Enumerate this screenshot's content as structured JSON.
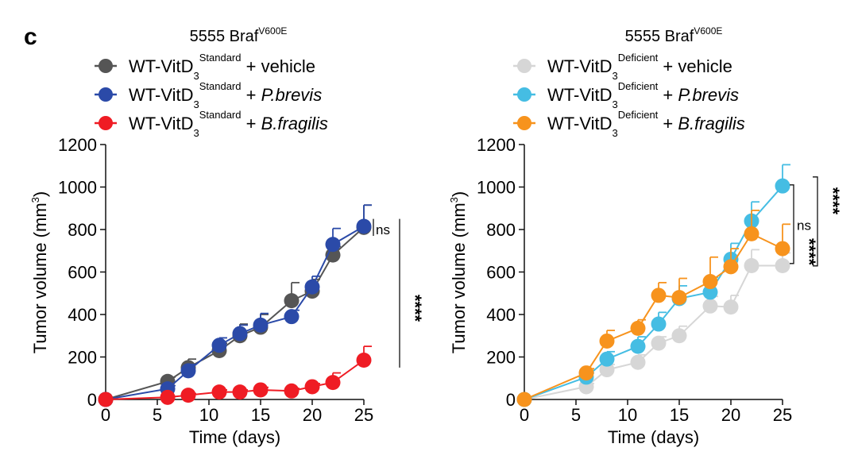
{
  "panel_label": "c",
  "chart_data": [
    {
      "type": "line",
      "title": {
        "main": "5555 Braf",
        "sup": "V600E"
      },
      "xlabel": "Time (days)",
      "ylabel": {
        "main": "Tumor volume (mm",
        "sup": "3",
        "end": ")"
      },
      "xlim": [
        0,
        25
      ],
      "ylim": [
        0,
        1200
      ],
      "xticks": [
        "0",
        "5",
        "10",
        "15",
        "20",
        "25"
      ],
      "yticks": [
        "0",
        "200",
        "400",
        "600",
        "800",
        "1000",
        "1200"
      ],
      "series": [
        {
          "legend": {
            "a": "WT-VitD",
            "sub": "3",
            "sup": "Standard",
            "b": " + ",
            "c": "vehicle",
            "italic": false
          },
          "color": "#555555",
          "x": [
            0,
            6,
            8,
            11,
            13,
            15,
            18,
            20,
            22,
            25
          ],
          "y": [
            0,
            85,
            150,
            230,
            300,
            340,
            465,
            510,
            680,
            810
          ],
          "err": [
            0,
            20,
            40,
            35,
            55,
            60,
            85,
            55,
            40,
            105
          ]
        },
        {
          "legend": {
            "a": "WT-VitD",
            "sub": "3",
            "sup": "Standard",
            "b": " + ",
            "c": "P.brevis",
            "italic": true
          },
          "color": "#2b4aa8",
          "x": [
            0,
            6,
            8,
            11,
            13,
            15,
            18,
            20,
            22,
            25
          ],
          "y": [
            0,
            50,
            135,
            255,
            310,
            350,
            390,
            530,
            730,
            815
          ],
          "err": [
            0,
            15,
            30,
            35,
            40,
            55,
            30,
            50,
            75,
            100
          ]
        },
        {
          "legend": {
            "a": "WT-VitD",
            "sub": "3",
            "sup": "Standard",
            "b": " + ",
            "c": "B.fragilis",
            "italic": true
          },
          "color": "#ef1c24",
          "x": [
            0,
            6,
            8,
            11,
            13,
            15,
            18,
            20,
            22,
            25
          ],
          "y": [
            0,
            10,
            20,
            35,
            35,
            45,
            40,
            60,
            80,
            185
          ],
          "err": [
            0,
            5,
            8,
            10,
            10,
            12,
            12,
            15,
            45,
            65
          ]
        }
      ],
      "annotations": [
        {
          "text": "ns",
          "kind": "label",
          "x": 25.2,
          "y1": 770,
          "y2": 850,
          "style": "bar-left"
        },
        {
          "text": "****",
          "kind": "stars",
          "xpx_offset": 45,
          "y1": 0,
          "y2": 820
        }
      ]
    },
    {
      "type": "line",
      "title": {
        "main": "5555 Braf",
        "sup": "V600E"
      },
      "xlabel": "Time (days)",
      "ylabel": {
        "main": "Tumor volume (mm",
        "sup": "3",
        "end": ")"
      },
      "xlim": [
        0,
        25
      ],
      "ylim": [
        0,
        1200
      ],
      "xticks": [
        "0",
        "5",
        "10",
        "15",
        "20",
        "25"
      ],
      "yticks": [
        "0",
        "200",
        "400",
        "600",
        "800",
        "1000",
        "1200"
      ],
      "series": [
        {
          "legend": {
            "a": "WT-VitD",
            "sub": "3",
            "sup": "Deficient",
            "b": " + ",
            "c": "vehicle",
            "italic": false
          },
          "color": "#d6d6d6",
          "x": [
            0,
            6,
            8,
            11,
            13,
            15,
            18,
            20,
            22,
            25
          ],
          "y": [
            0,
            60,
            140,
            175,
            265,
            300,
            440,
            435,
            630,
            630
          ],
          "err": [
            0,
            15,
            25,
            35,
            30,
            45,
            45,
            55,
            75,
            60
          ]
        },
        {
          "legend": {
            "a": "WT-VitD",
            "sub": "3",
            "sup": "Deficient",
            "b": " + ",
            "c": "P.brevis",
            "italic": true
          },
          "color": "#45bde3",
          "x": [
            0,
            6,
            8,
            11,
            13,
            15,
            18,
            20,
            22,
            25
          ],
          "y": [
            0,
            105,
            190,
            250,
            355,
            475,
            505,
            660,
            840,
            1005
          ],
          "err": [
            0,
            20,
            35,
            45,
            55,
            60,
            70,
            75,
            90,
            100
          ]
        },
        {
          "legend": {
            "a": "WT-VitD",
            "sub": "3",
            "sup": "Deficient",
            "b": " + ",
            "c": "B.fragilis",
            "italic": true
          },
          "color": "#f7931d",
          "x": [
            0,
            6,
            8,
            11,
            13,
            15,
            18,
            20,
            22,
            25
          ],
          "y": [
            0,
            125,
            275,
            335,
            490,
            480,
            555,
            625,
            780,
            710
          ],
          "err": [
            0,
            20,
            50,
            40,
            60,
            90,
            115,
            85,
            110,
            115
          ]
        }
      ],
      "annotations": [
        {
          "text": "ns",
          "kind": "label",
          "y1": 640,
          "y2": 1010
        },
        {
          "text": "****",
          "kind": "stars-inner",
          "y1": 620,
          "y2": 830
        },
        {
          "text": "****",
          "kind": "stars-outer",
          "y1": 610,
          "y2": 1010
        }
      ]
    }
  ]
}
